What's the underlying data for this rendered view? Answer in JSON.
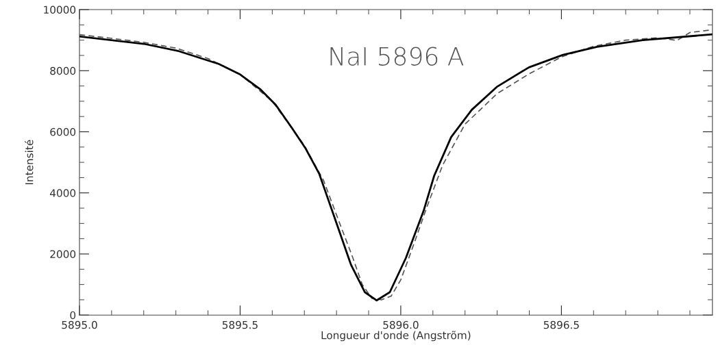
{
  "chart_data": {
    "type": "line",
    "xlabel": "Longueur d'onde (Angstrõm)",
    "ylabel": "Intensité",
    "annotations": [
      "NaI 5896 A"
    ],
    "xlim": [
      5895.0,
      5896.97
    ],
    "ylim": [
      0,
      10000
    ],
    "xticks": [
      {
        "value": 5895.0,
        "label": "5895.0"
      },
      {
        "value": 5895.1,
        "label": null
      },
      {
        "value": 5895.2,
        "label": null
      },
      {
        "value": 5895.3,
        "label": null
      },
      {
        "value": 5895.4,
        "label": null
      },
      {
        "value": 5895.5,
        "label": "5895.5"
      },
      {
        "value": 5895.6,
        "label": null
      },
      {
        "value": 5895.7,
        "label": null
      },
      {
        "value": 5895.8,
        "label": null
      },
      {
        "value": 5895.9,
        "label": null
      },
      {
        "value": 5896.0,
        "label": "5896.0"
      },
      {
        "value": 5896.1,
        "label": null
      },
      {
        "value": 5896.2,
        "label": null
      },
      {
        "value": 5896.3,
        "label": null
      },
      {
        "value": 5896.4,
        "label": null
      },
      {
        "value": 5896.5,
        "label": "5896.5"
      },
      {
        "value": 5896.6,
        "label": null
      },
      {
        "value": 5896.7,
        "label": null
      },
      {
        "value": 5896.8,
        "label": null
      },
      {
        "value": 5896.9,
        "label": null
      }
    ],
    "yticks": [
      0,
      {
        "value": 500,
        "label": null
      },
      {
        "value": 1000,
        "label": null
      },
      {
        "value": 1500,
        "label": null
      },
      2000,
      {
        "value": 2500,
        "label": null
      },
      {
        "value": 3000,
        "label": null
      },
      {
        "value": 3500,
        "label": null
      },
      4000,
      {
        "value": 4500,
        "label": null
      },
      {
        "value": 5000,
        "label": null
      },
      {
        "value": 5500,
        "label": null
      },
      6000,
      {
        "value": 6500,
        "label": null
      },
      {
        "value": 7000,
        "label": null
      },
      {
        "value": 7500,
        "label": null
      },
      8000,
      {
        "value": 8500,
        "label": null
      },
      {
        "value": 9000,
        "label": null
      },
      {
        "value": 9500,
        "label": null
      },
      10000
    ],
    "marker": "none",
    "series": [
      {
        "color": "#000000",
        "line_style": "solid",
        "x": [
          5895.0,
          5895.2,
          5895.306,
          5895.434,
          5895.498,
          5895.562,
          5895.611,
          5895.661,
          5895.704,
          5895.746,
          5895.803,
          5895.845,
          5895.888,
          5895.925,
          5895.966,
          5896.016,
          5896.072,
          5896.104,
          5896.157,
          5896.221,
          5896.299,
          5896.399,
          5896.505,
          5896.611,
          5896.753,
          5896.97
        ],
        "values": [
          9120,
          8880,
          8650,
          8220,
          7890,
          7400,
          6880,
          6130,
          5450,
          4630,
          2920,
          1650,
          750,
          480,
          750,
          1870,
          3440,
          4560,
          5830,
          6720,
          7470,
          8110,
          8520,
          8780,
          9000,
          9190
        ]
      },
      {
        "color": "#555555",
        "line_style": "dashed",
        "x": [
          5895.0,
          5895.1,
          5895.2,
          5895.3,
          5895.4,
          5895.5,
          5895.6,
          5895.7,
          5895.76,
          5895.81,
          5895.85,
          5895.88,
          5895.91,
          5895.94,
          5895.97,
          5896.0,
          5896.04,
          5896.08,
          5896.13,
          5896.2,
          5896.3,
          5896.4,
          5896.5,
          5896.6,
          5896.7,
          5896.8,
          5896.86,
          5896.9,
          5896.97
        ],
        "values": [
          9180,
          9060,
          8930,
          8740,
          8400,
          7880,
          7000,
          5550,
          4400,
          3000,
          1900,
          1000,
          550,
          500,
          620,
          1150,
          2300,
          3500,
          4900,
          6250,
          7250,
          7900,
          8450,
          8800,
          9000,
          9080,
          8990,
          9250,
          9340
        ]
      }
    ]
  }
}
